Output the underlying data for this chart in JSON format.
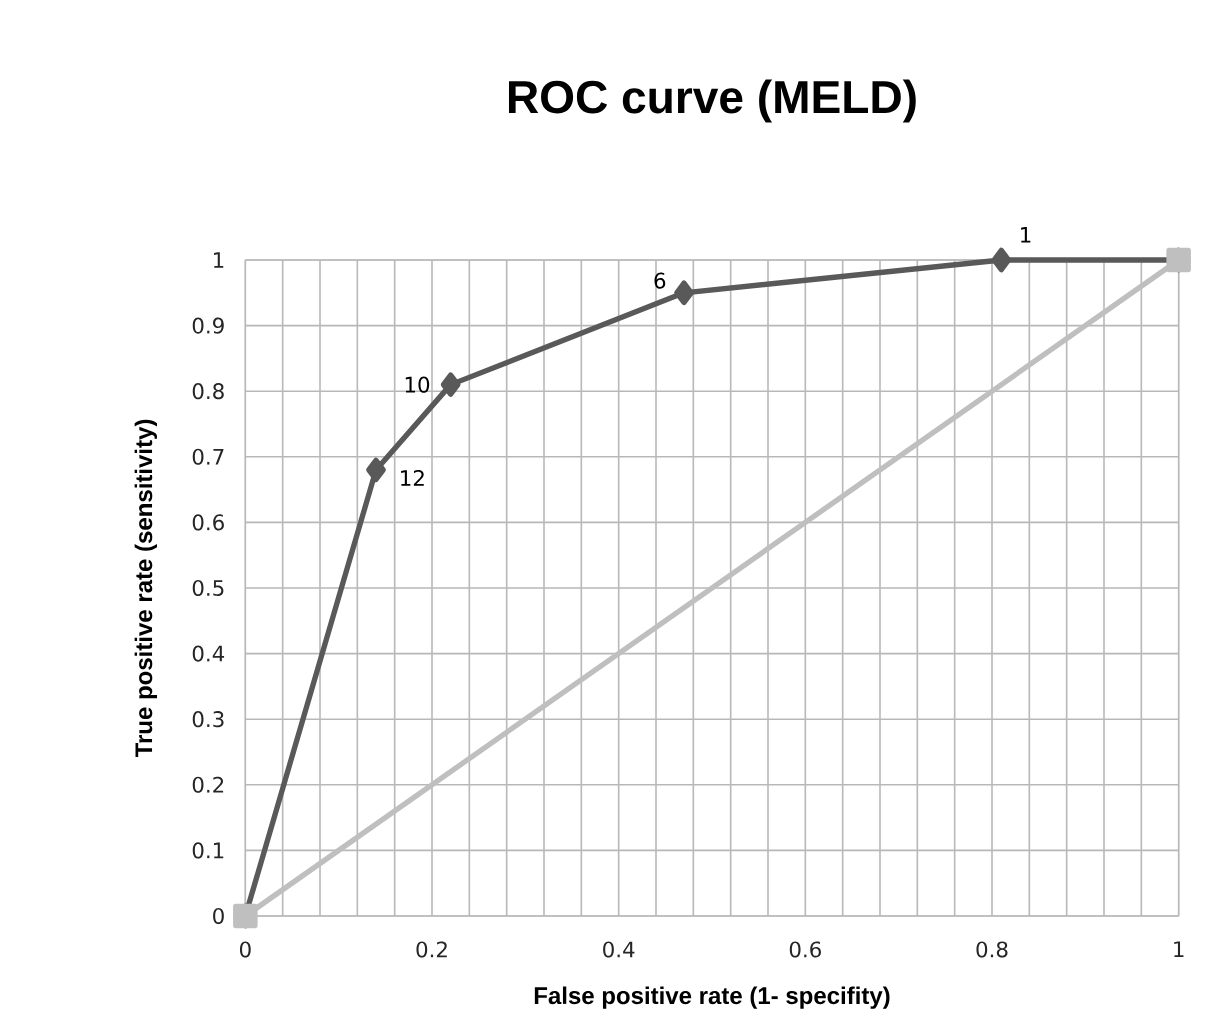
{
  "chart_data": {
    "type": "line",
    "title": "ROC curve (MELD)",
    "xlabel": "False positive rate (1- specifity)",
    "ylabel": "True positive rate (sensitivity)",
    "xlim": [
      0,
      1
    ],
    "ylim": [
      0,
      1
    ],
    "xticks": [
      0,
      {
        "value": 0.04,
        "label": null
      },
      {
        "value": 0.08,
        "label": null
      },
      {
        "value": 0.12,
        "label": null
      },
      {
        "value": 0.16,
        "label": null
      },
      0.2,
      {
        "value": 0.24,
        "label": null
      },
      {
        "value": 0.28,
        "label": null
      },
      {
        "value": 0.32,
        "label": null
      },
      {
        "value": 0.36,
        "label": null
      },
      0.4,
      {
        "value": 0.44,
        "label": null
      },
      {
        "value": 0.48,
        "label": null
      },
      {
        "value": 0.52,
        "label": null
      },
      {
        "value": 0.56,
        "label": null
      },
      0.6,
      {
        "value": 0.64,
        "label": null
      },
      {
        "value": 0.68,
        "label": null
      },
      {
        "value": 0.72,
        "label": null
      },
      {
        "value": 0.76,
        "label": null
      },
      0.8,
      {
        "value": 0.84,
        "label": null
      },
      {
        "value": 0.88,
        "label": null
      },
      {
        "value": 0.92,
        "label": null
      },
      {
        "value": 0.96,
        "label": null
      },
      1
    ],
    "yticks": [
      0,
      0.1,
      0.2,
      0.3,
      0.4,
      0.5,
      0.6,
      0.7,
      0.8,
      0.9,
      1
    ],
    "grid": true,
    "series": [
      {
        "color": "#595959",
        "marker": "diamond",
        "x": [
          0,
          0.14,
          0.22,
          0.47,
          0.81,
          1
        ],
        "values": [
          0,
          0.68,
          0.81,
          0.95,
          1,
          1
        ]
      },
      {
        "color": "#bfbfbf",
        "marker": "square",
        "x": [
          0,
          1
        ],
        "values": [
          0,
          1
        ]
      }
    ],
    "annotations": [
      {
        "text": "12",
        "x": 0.14,
        "y": 0.68
      },
      {
        "text": "10",
        "x": 0.22,
        "y": 0.81
      },
      {
        "text": "6",
        "x": 0.47,
        "y": 0.95
      },
      {
        "text": "1",
        "x": 0.81,
        "y": 1
      }
    ]
  }
}
